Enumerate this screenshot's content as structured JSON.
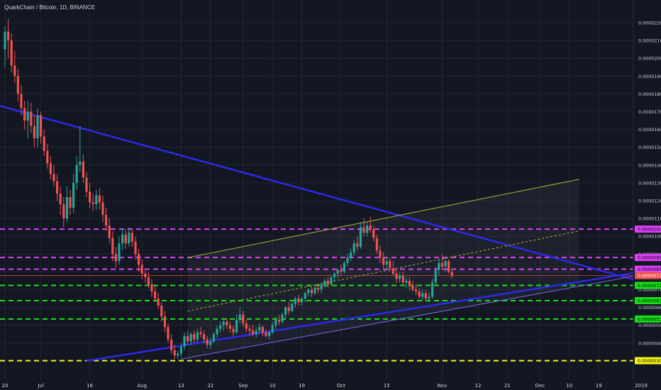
{
  "header": {
    "symbol_line": "QuarkChain / Bitcoin, 1D, BINANCE"
  },
  "colors": {
    "background": "#131722",
    "grid": "#2a2e39",
    "axis_text": "#d1d4dc",
    "up_candle": "#26a69a",
    "down_candle": "#ef5350",
    "downtrend_line": "#2a2ae8",
    "support_line": "#7b68ee",
    "channel_line": "#b5b53a",
    "magenta_level": "#e040fb",
    "green_level": "#18e018",
    "yellow_level": "#f5f519",
    "current_price_line": "#ef5350"
  },
  "chart_data": {
    "type": "candlestick",
    "title": "QuarkChain / Bitcoin, 1D, BINANCE",
    "xlabel": "",
    "ylabel": "",
    "ylim": [
      2.9e-06,
      2.28e-05
    ],
    "grid": true,
    "y_ticks": [
      "0.00002200",
      "0.00002100",
      "0.00002000",
      "0.00001900",
      "0.00001800",
      "0.00001700",
      "0.00001600",
      "0.00001500",
      "0.00001400",
      "0.00001300",
      "0.00001200",
      "0.00001100",
      "0.00001000",
      "0.00000900",
      "0.00000800",
      "0.00000700",
      "0.00000600",
      "0.00000500",
      "0.00000400",
      "0.00000300"
    ],
    "x_ticks": [
      {
        "label": "20",
        "day": 0
      },
      {
        "label": "Jul",
        "day": 11
      },
      {
        "label": "16",
        "day": 26
      },
      {
        "label": "Aug",
        "day": 42
      },
      {
        "label": "13",
        "day": 54
      },
      {
        "label": "22",
        "day": 63
      },
      {
        "label": "Sep",
        "day": 73
      },
      {
        "label": "10",
        "day": 82
      },
      {
        "label": "19",
        "day": 91
      },
      {
        "label": "Oct",
        "day": 103
      },
      {
        "label": "15",
        "day": 117
      },
      {
        "label": "Nov",
        "day": 134
      },
      {
        "label": "12",
        "day": 145
      },
      {
        "label": "21",
        "day": 154
      },
      {
        "label": "Dec",
        "day": 164
      },
      {
        "label": "10",
        "day": 173
      },
      {
        "label": "19",
        "day": 182
      },
      {
        "label": "2019",
        "day": 195
      }
    ],
    "price_labels": [
      {
        "label": "0.00001040",
        "value": 1.04e-05,
        "color": "#e040fb",
        "text_color": "#000000"
      },
      {
        "label": "0.00000881",
        "value": 8.81e-06,
        "color": "#e040fb",
        "text_color": "#000000"
      },
      {
        "label": "0.00000815",
        "value": 8.15e-06,
        "color": "#e040fb",
        "text_color": "#000000"
      },
      {
        "label": "0.00000779",
        "value": 7.79e-06,
        "color": "#ef5350",
        "text_color": "#ffffff"
      },
      {
        "label": "0.00000724",
        "value": 7.24e-06,
        "color": "#18e018",
        "text_color": "#000000"
      },
      {
        "label": "0.00000638",
        "value": 6.38e-06,
        "color": "#18e018",
        "text_color": "#000000"
      },
      {
        "label": "0.00000535",
        "value": 5.35e-06,
        "color": "#18e018",
        "text_color": "#000000"
      },
      {
        "label": "0.00000301",
        "value": 3.01e-06,
        "color": "#f5f519",
        "text_color": "#000000"
      }
    ],
    "horizontal_levels": [
      {
        "value": 1.04e-05,
        "color": "#e040fb"
      },
      {
        "value": 8.81e-06,
        "color": "#e040fb"
      },
      {
        "value": 8.15e-06,
        "color": "#e040fb"
      },
      {
        "value": 7.24e-06,
        "color": "#18e018"
      },
      {
        "value": 6.38e-06,
        "color": "#18e018"
      },
      {
        "value": 5.35e-06,
        "color": "#18e018"
      },
      {
        "value": 3.01e-06,
        "color": "#f5f519"
      }
    ],
    "current_price": 7.79e-06,
    "trend_lines": [
      {
        "from": [
          -3,
          1.74e-05
        ],
        "to": [
          200,
          7.2e-06
        ],
        "color": "#2a2ae8",
        "width": 2.5,
        "dash": false
      },
      {
        "from": [
          25,
          3e-06
        ],
        "to": [
          195,
          8e-06
        ],
        "color": "#2a2ae8",
        "width": 2.5,
        "dash": false
      },
      {
        "from": [
          54,
          3.1e-06
        ],
        "to": [
          200,
          8e-06
        ],
        "color": "#7b68ee",
        "width": 1,
        "dash": false
      },
      {
        "from": [
          56,
          8.8e-06
        ],
        "to": [
          176,
          1.32e-05
        ],
        "color": "#b5b53a",
        "width": 1,
        "dash": false
      },
      {
        "from": [
          56,
          5.8e-06
        ],
        "to": [
          176,
          1.03e-05
        ],
        "color": "#b5b53a",
        "width": 1,
        "dash": true
      }
    ],
    "ohlc": [
      [
        2.05e-05,
        2.18e-05,
        1.95e-05,
        2.15e-05
      ],
      [
        2.15e-05,
        2.22e-05,
        2e-05,
        2.1e-05
      ],
      [
        2.1e-05,
        2.14e-05,
        1.92e-05,
        1.96e-05
      ],
      [
        1.96e-05,
        2.04e-05,
        1.86e-05,
        1.9e-05
      ],
      [
        1.9e-05,
        1.94e-05,
        1.76e-05,
        1.8e-05
      ],
      [
        1.8e-05,
        1.85e-05,
        1.68e-05,
        1.72e-05
      ],
      [
        1.72e-05,
        1.76e-05,
        1.6e-05,
        1.65e-05
      ],
      [
        1.65e-05,
        1.76e-05,
        1.55e-05,
        1.7e-05
      ],
      [
        1.7e-05,
        1.75e-05,
        1.58e-05,
        1.62e-05
      ],
      [
        1.62e-05,
        1.68e-05,
        1.5e-05,
        1.55e-05
      ],
      [
        1.55e-05,
        1.72e-05,
        1.5e-05,
        1.68e-05
      ],
      [
        1.68e-05,
        1.7e-05,
        1.52e-05,
        1.56e-05
      ],
      [
        1.56e-05,
        1.6e-05,
        1.45e-05,
        1.48e-05
      ],
      [
        1.48e-05,
        1.52e-05,
        1.38e-05,
        1.41e-05
      ],
      [
        1.41e-05,
        1.45e-05,
        1.32e-05,
        1.35e-05
      ],
      [
        1.35e-05,
        1.4e-05,
        1.28e-05,
        1.31e-05
      ],
      [
        1.31e-05,
        1.35e-05,
        1.2e-05,
        1.24e-05
      ],
      [
        1.24e-05,
        1.28e-05,
        1.12e-05,
        1.18e-05
      ],
      [
        1.18e-05,
        1.22e-05,
        1.05e-05,
        1.1e-05
      ],
      [
        1.1e-05,
        1.28e-05,
        1.08e-05,
        1.22e-05
      ],
      [
        1.22e-05,
        1.26e-05,
        1.12e-05,
        1.16e-05
      ],
      [
        1.16e-05,
        1.35e-05,
        1.13e-05,
        1.3e-05
      ],
      [
        1.3e-05,
        1.45e-05,
        1.26e-05,
        1.4e-05
      ],
      [
        1.4e-05,
        1.62e-05,
        1.36e-05,
        1.42e-05
      ],
      [
        1.42e-05,
        1.46e-05,
        1.3e-05,
        1.33e-05
      ],
      [
        1.33e-05,
        1.36e-05,
        1.22e-05,
        1.25e-05
      ],
      [
        1.25e-05,
        1.3e-05,
        1.16e-05,
        1.19e-05
      ],
      [
        1.19e-05,
        1.24e-05,
        1.14e-05,
        1.18e-05
      ],
      [
        1.18e-05,
        1.26e-05,
        1.15e-05,
        1.23e-05
      ],
      [
        1.23e-05,
        1.27e-05,
        1.15e-05,
        1.19e-05
      ],
      [
        1.19e-05,
        1.23e-05,
        1.08e-05,
        1.12e-05
      ],
      [
        1.12e-05,
        1.16e-05,
        1.03e-05,
        1.06e-05
      ],
      [
        1.06e-05,
        1.1e-05,
        9.6e-06,
        9.9e-06
      ],
      [
        9.9e-06,
        1.03e-05,
        8.6e-06,
        9e-06
      ],
      [
        9e-06,
        9.4e-06,
        8.2e-06,
        8.6e-06
      ],
      [
        8.6e-06,
        1e-05,
        8.4e-06,
        9.6e-06
      ],
      [
        9.6e-06,
        1.04e-05,
        9.2e-06,
        1.01e-05
      ],
      [
        1.01e-05,
        1.04e-05,
        9.3e-06,
        9.6e-06
      ],
      [
        9.6e-06,
        1.05e-05,
        9.4e-06,
        1.02e-05
      ],
      [
        1.02e-05,
        1.04e-05,
        9.4e-06,
        9.7e-06
      ],
      [
        9.7e-06,
        1e-05,
        8.7e-06,
        9e-06
      ],
      [
        9e-06,
        9.3e-06,
        8e-06,
        8.4e-06
      ],
      [
        8.4e-06,
        8.7e-06,
        7.6e-06,
        7.9e-06
      ],
      [
        7.9e-06,
        8.2e-06,
        7.4e-06,
        7.7e-06
      ],
      [
        7.7e-06,
        8e-06,
        7.1e-06,
        7.3e-06
      ],
      [
        7.3e-06,
        7.6e-06,
        6.6e-06,
        6.9e-06
      ],
      [
        6.9e-06,
        7.2e-06,
        6.3e-06,
        6.5e-06
      ],
      [
        6.5e-06,
        6.8e-06,
        5.9e-06,
        6.1e-06
      ],
      [
        6.1e-06,
        6.3e-06,
        5.2e-06,
        5.5e-06
      ],
      [
        5.5e-06,
        5.8e-06,
        4.6e-06,
        4.9e-06
      ],
      [
        4.9e-06,
        5.1e-06,
        4e-06,
        4.2e-06
      ],
      [
        4.2e-06,
        4.5e-06,
        3.4e-06,
        3.6e-06
      ],
      [
        3.6e-06,
        3.9e-06,
        3.1e-06,
        3.3e-06
      ],
      [
        3.3e-06,
        3.6e-06,
        3.1e-06,
        3.4e-06
      ],
      [
        3.4e-06,
        4e-06,
        3.2e-06,
        3.8e-06
      ],
      [
        3.8e-06,
        4.6e-06,
        3.6e-06,
        4.4e-06
      ],
      [
        4.4e-06,
        4.7e-06,
        3.9e-06,
        4.1e-06
      ],
      [
        4.1e-06,
        4.6e-06,
        3.9e-06,
        4.5e-06
      ],
      [
        4.5e-06,
        4.7e-06,
        4e-06,
        4.2e-06
      ],
      [
        4.2e-06,
        4.8e-06,
        4e-06,
        4.6e-06
      ],
      [
        4.6e-06,
        4.9e-06,
        4.3e-06,
        4.5e-06
      ],
      [
        4.5e-06,
        4.7e-06,
        4e-06,
        4.2e-06
      ],
      [
        4.2e-06,
        4.4e-06,
        3.7e-06,
        3.9e-06
      ],
      [
        3.9e-06,
        4.3e-06,
        3.7e-06,
        4.1e-06
      ],
      [
        4.1e-06,
        4.6e-06,
        4e-06,
        4.5e-06
      ],
      [
        4.5e-06,
        5e-06,
        4.3e-06,
        4.8e-06
      ],
      [
        4.8e-06,
        5.2e-06,
        4.6e-06,
        5e-06
      ],
      [
        5e-06,
        5.3e-06,
        4.7e-06,
        5.2e-06
      ],
      [
        5.2e-06,
        5.4e-06,
        4.8e-06,
        5e-06
      ],
      [
        5e-06,
        5.2e-06,
        4.6e-06,
        4.8e-06
      ],
      [
        4.8e-06,
        5e-06,
        4.4e-06,
        4.6e-06
      ],
      [
        4.6e-06,
        5.6e-06,
        4.5e-06,
        5.3e-06
      ],
      [
        5.3e-06,
        6e-06,
        5.1e-06,
        5.6e-06
      ],
      [
        5.6e-06,
        5.8e-06,
        4.9e-06,
        5.1e-06
      ],
      [
        5.1e-06,
        5.3e-06,
        4.6e-06,
        4.8e-06
      ],
      [
        4.8e-06,
        5e-06,
        4.4e-06,
        4.7e-06
      ],
      [
        4.7e-06,
        5e-06,
        4.4e-06,
        4.5e-06
      ],
      [
        4.5e-06,
        4.9e-06,
        4.3e-06,
        4.7e-06
      ],
      [
        4.7e-06,
        5.1e-06,
        4.5e-06,
        4.9e-06
      ],
      [
        4.9e-06,
        5e-06,
        4.4e-06,
        4.6e-06
      ],
      [
        4.6e-06,
        4.8e-06,
        4.3e-06,
        4.4e-06
      ],
      [
        4.4e-06,
        4.7e-06,
        4.2e-06,
        4.6e-06
      ],
      [
        4.6e-06,
        5.2e-06,
        4.5e-06,
        5e-06
      ],
      [
        5e-06,
        5.5e-06,
        4.8e-06,
        5.3e-06
      ],
      [
        5.3e-06,
        5.6e-06,
        5e-06,
        5.2e-06
      ],
      [
        5.2e-06,
        5.7e-06,
        5.1e-06,
        5.6e-06
      ],
      [
        5.6e-06,
        6.1e-06,
        5.4e-06,
        6e-06
      ],
      [
        6e-06,
        6.3e-06,
        5.6e-06,
        5.8e-06
      ],
      [
        5.8e-06,
        6.3e-06,
        5.7e-06,
        6.2e-06
      ],
      [
        6.2e-06,
        6.6e-06,
        6e-06,
        6.5e-06
      ],
      [
        6.5e-06,
        6.7e-06,
        6.1e-06,
        6.3e-06
      ],
      [
        6.3e-06,
        6.6e-06,
        6.1e-06,
        6.5e-06
      ],
      [
        6.5e-06,
        6.9e-06,
        6.3e-06,
        6.8e-06
      ],
      [
        6.8e-06,
        7.1e-06,
        6.6e-06,
        7e-06
      ],
      [
        7e-06,
        7.2e-06,
        6.6e-06,
        6.8e-06
      ],
      [
        6.8e-06,
        7.2e-06,
        6.7e-06,
        7.1e-06
      ],
      [
        7.1e-06,
        7.3e-06,
        6.8e-06,
        7e-06
      ],
      [
        7e-06,
        7.4e-06,
        6.8e-06,
        7.3e-06
      ],
      [
        7.3e-06,
        7.6e-06,
        7.1e-06,
        7.5e-06
      ],
      [
        7.5e-06,
        7.7e-06,
        7.1e-06,
        7.3e-06
      ],
      [
        7.3e-06,
        7.8e-06,
        7.2e-06,
        7.7e-06
      ],
      [
        7.7e-06,
        8e-06,
        7.5e-06,
        7.9e-06
      ],
      [
        7.9e-06,
        8.2e-06,
        7.6e-06,
        8.1e-06
      ],
      [
        8.1e-06,
        8.4e-06,
        7.8e-06,
        8e-06
      ],
      [
        8e-06,
        8.6e-06,
        7.9e-06,
        8.5e-06
      ],
      [
        8.5e-06,
        9e-06,
        8.3e-06,
        8.8e-06
      ],
      [
        8.8e-06,
        9.3e-06,
        8.6e-06,
        9.1e-06
      ],
      [
        9.1e-06,
        9.8e-06,
        8.9e-06,
        9.6e-06
      ],
      [
        9.6e-06,
        1e-05,
        9.2e-06,
        9.4e-06
      ],
      [
        9.4e-06,
        1.08e-05,
        9.3e-06,
        1.05e-05
      ],
      [
        1.05e-05,
        1.1e-05,
        1e-05,
        1.02e-05
      ],
      [
        1.02e-05,
        1.08e-05,
        1e-05,
        1.06e-05
      ],
      [
        1.06e-05,
        1.11e-05,
        1.02e-05,
        1.04e-05
      ],
      [
        1.04e-05,
        1.06e-05,
        9.7e-06,
        9.9e-06
      ],
      [
        9.9e-06,
        1.01e-05,
        9e-06,
        9.2e-06
      ],
      [
        9.2e-06,
        9.5e-06,
        8.5e-06,
        8.8e-06
      ],
      [
        8.8e-06,
        9.1e-06,
        8.2e-06,
        8.4e-06
      ],
      [
        8.4e-06,
        8.8e-06,
        8.2e-06,
        8.6e-06
      ],
      [
        8.6e-06,
        8.8e-06,
        8e-06,
        8.2e-06
      ],
      [
        8.2e-06,
        8.6e-06,
        7.8e-06,
        7.9e-06
      ],
      [
        7.9e-06,
        8.2e-06,
        7.4e-06,
        7.6e-06
      ],
      [
        7.6e-06,
        8e-06,
        7.4e-06,
        7.8e-06
      ],
      [
        7.8e-06,
        8e-06,
        7.3e-06,
        7.4e-06
      ],
      [
        7.4e-06,
        7.7e-06,
        7.1e-06,
        7.5e-06
      ],
      [
        7.5e-06,
        7.7e-06,
        7e-06,
        7.2e-06
      ],
      [
        7.2e-06,
        7.5e-06,
        6.9e-06,
        7e-06
      ],
      [
        7e-06,
        7.3e-06,
        6.7e-06,
        6.9e-06
      ],
      [
        6.9e-06,
        7.1e-06,
        6.5e-06,
        6.6e-06
      ],
      [
        6.6e-06,
        7e-06,
        6.4e-06,
        6.8e-06
      ],
      [
        6.8e-06,
        7e-06,
        6.4e-06,
        6.5e-06
      ],
      [
        6.5e-06,
        6.9e-06,
        6.3e-06,
        6.6e-06
      ],
      [
        6.6e-06,
        7.6e-06,
        6.5e-06,
        7.4e-06
      ],
      [
        7.4e-06,
        8.3e-06,
        7.2e-06,
        8.1e-06
      ],
      [
        8.1e-06,
        8.7e-06,
        7.8e-06,
        8.5e-06
      ],
      [
        8.5e-06,
        9e-06,
        8.1e-06,
        8.3e-06
      ],
      [
        8.3e-06,
        8.8e-06,
        8e-06,
        8.6e-06
      ],
      [
        8.6e-06,
        8.7e-06,
        7.9e-06,
        8e-06
      ],
      [
        8e-06,
        8.2e-06,
        7.6e-06,
        7.8e-06
      ]
    ]
  }
}
